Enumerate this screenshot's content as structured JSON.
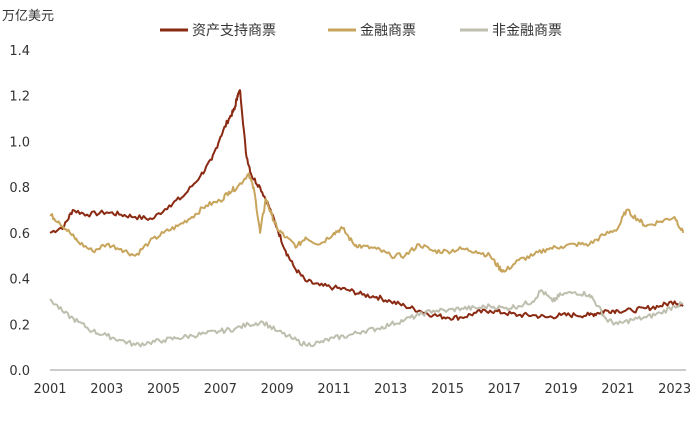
{
  "chart_data": {
    "type": "line",
    "title": "",
    "unit_label": "万亿美元",
    "xlabel": "",
    "ylabel": "",
    "xlim": [
      2001,
      2023.4
    ],
    "ylim": [
      0,
      1.4
    ],
    "x_ticks": [
      "2001",
      "2003",
      "2005",
      "2007",
      "2009",
      "2011",
      "2013",
      "2015",
      "2017",
      "2019",
      "2021",
      "2023"
    ],
    "y_ticks": [
      "0.0",
      "0.2",
      "0.4",
      "0.6",
      "0.8",
      "1.0",
      "1.2",
      "1.4"
    ],
    "grid": false,
    "legend_position": "top",
    "series": [
      {
        "name": "资产支持商票",
        "color": "#8B2A12",
        "x": [
          2001,
          2001.5,
          2001.8,
          2002.3,
          2003,
          2003.5,
          2004,
          2004.6,
          2005.2,
          2005.7,
          2006.3,
          2006.7,
          2007,
          2007.3,
          2007.5,
          2007.6,
          2007.7,
          2007.9,
          2008.1,
          2008.4,
          2008.7,
          2009,
          2009.3,
          2009.6,
          2010,
          2010.5,
          2011,
          2011.5,
          2012,
          2012.5,
          2013,
          2013.5,
          2014,
          2014.5,
          2015,
          2015.5,
          2016,
          2016.5,
          2017,
          2017.5,
          2018,
          2018.5,
          2019,
          2019.5,
          2020,
          2020.3,
          2020.6,
          2021,
          2021.5,
          2022,
          2022.5,
          2023,
          2023.3
        ],
        "values": [
          0.6,
          0.63,
          0.7,
          0.68,
          0.69,
          0.68,
          0.67,
          0.66,
          0.72,
          0.76,
          0.85,
          0.92,
          1.02,
          1.1,
          1.14,
          1.2,
          1.22,
          0.95,
          0.85,
          0.8,
          0.72,
          0.62,
          0.52,
          0.45,
          0.39,
          0.37,
          0.36,
          0.35,
          0.33,
          0.32,
          0.3,
          0.28,
          0.26,
          0.24,
          0.23,
          0.23,
          0.25,
          0.26,
          0.25,
          0.24,
          0.24,
          0.23,
          0.24,
          0.24,
          0.24,
          0.25,
          0.26,
          0.26,
          0.26,
          0.27,
          0.28,
          0.3,
          0.28
        ]
      },
      {
        "name": "金融商票",
        "color": "#C8A55C",
        "x": [
          2001,
          2001.3,
          2001.7,
          2002,
          2002.5,
          2003,
          2003.5,
          2004,
          2004.5,
          2005,
          2005.5,
          2006,
          2006.5,
          2007,
          2007.3,
          2007.6,
          2008,
          2008.2,
          2008.4,
          2008.6,
          2008.8,
          2009,
          2009.3,
          2009.7,
          2010,
          2010.5,
          2011,
          2011.3,
          2011.7,
          2012,
          2012.5,
          2013,
          2013.5,
          2014,
          2014.5,
          2015,
          2015.5,
          2016,
          2016.5,
          2016.8,
          2017,
          2017.5,
          2018,
          2018.5,
          2019,
          2019.5,
          2020,
          2020.5,
          2021,
          2021.3,
          2021.7,
          2022,
          2022.5,
          2023,
          2023.3
        ],
        "values": [
          0.68,
          0.65,
          0.6,
          0.56,
          0.52,
          0.55,
          0.53,
          0.5,
          0.56,
          0.6,
          0.63,
          0.67,
          0.72,
          0.74,
          0.78,
          0.8,
          0.86,
          0.78,
          0.6,
          0.75,
          0.68,
          0.62,
          0.58,
          0.54,
          0.58,
          0.55,
          0.6,
          0.62,
          0.55,
          0.54,
          0.53,
          0.5,
          0.5,
          0.55,
          0.52,
          0.52,
          0.53,
          0.52,
          0.5,
          0.45,
          0.43,
          0.48,
          0.5,
          0.53,
          0.54,
          0.55,
          0.55,
          0.59,
          0.62,
          0.7,
          0.66,
          0.63,
          0.65,
          0.67,
          0.6
        ]
      },
      {
        "name": "非金融商票",
        "color": "#BFBFAF",
        "x": [
          2001,
          2001.5,
          2002,
          2002.5,
          2003,
          2003.5,
          2004,
          2004.5,
          2005,
          2005.5,
          2006,
          2006.5,
          2007,
          2007.5,
          2008,
          2008.5,
          2009,
          2009.5,
          2010,
          2010.5,
          2011,
          2011.5,
          2012,
          2012.5,
          2013,
          2013.5,
          2014,
          2014.5,
          2015,
          2015.5,
          2016,
          2016.5,
          2017,
          2017.5,
          2018,
          2018.3,
          2018.7,
          2019,
          2019.5,
          2020,
          2020.3,
          2020.6,
          2021,
          2021.5,
          2022,
          2022.5,
          2023,
          2023.3
        ],
        "values": [
          0.31,
          0.25,
          0.21,
          0.17,
          0.15,
          0.13,
          0.11,
          0.12,
          0.13,
          0.14,
          0.15,
          0.16,
          0.17,
          0.18,
          0.2,
          0.21,
          0.17,
          0.14,
          0.11,
          0.12,
          0.14,
          0.15,
          0.17,
          0.18,
          0.2,
          0.22,
          0.24,
          0.26,
          0.26,
          0.27,
          0.27,
          0.28,
          0.27,
          0.28,
          0.3,
          0.35,
          0.3,
          0.33,
          0.34,
          0.33,
          0.28,
          0.22,
          0.2,
          0.22,
          0.23,
          0.25,
          0.28,
          0.29
        ]
      }
    ]
  }
}
